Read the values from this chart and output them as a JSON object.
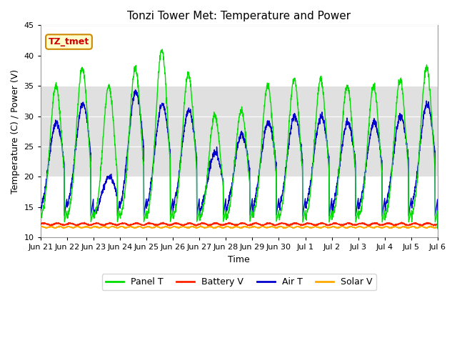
{
  "title": "Tonzi Tower Met: Temperature and Power",
  "xlabel": "Time",
  "ylabel": "Temperature (C) / Power (V)",
  "ylim": [
    10,
    45
  ],
  "yticks": [
    10,
    15,
    20,
    25,
    30,
    35,
    40,
    45
  ],
  "x_labels": [
    "Jun 21",
    "Jun 22",
    "Jun 23",
    "Jun 24",
    "Jun 25",
    "Jun 26",
    "Jun 27",
    "Jun 28",
    "Jun 29",
    "Jun 30",
    "Jul 1",
    "Jul 2",
    "Jul 3",
    "Jul 4",
    "Jul 5",
    "Jul 6"
  ],
  "annotation_text": "TZ_tmet",
  "annotation_color": "#cc0000",
  "annotation_bg": "#ffffcc",
  "annotation_border": "#cc8800",
  "panel_t_color": "#00dd00",
  "battery_v_color": "#ff2200",
  "air_t_color": "#0000cc",
  "solar_v_color": "#ffaa00",
  "plot_bg": "#ffffff",
  "shade_color": "#e0e0e0",
  "shade_lo": 20,
  "shade_hi": 35,
  "legend_labels": [
    "Panel T",
    "Battery V",
    "Air T",
    "Solar V"
  ],
  "title_fontsize": 11,
  "axis_label_fontsize": 9,
  "tick_fontsize": 8
}
